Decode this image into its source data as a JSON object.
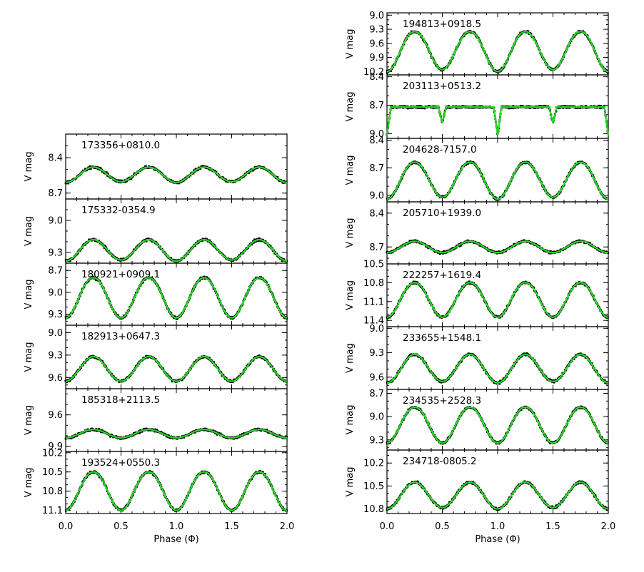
{
  "chart_data": {
    "type": "scatter",
    "xlabel": "Phase (Φ)",
    "xlim": [
      0.0,
      2.0
    ],
    "x_ticks": [
      "0.0",
      "0.5",
      "1.0",
      "1.5",
      "2.0"
    ],
    "ylabel": "V mag",
    "fit_color": "#22dd22",
    "point_color": "#000000",
    "panels": [
      {
        "column": "left",
        "id": "173356+0810.0",
        "ylim": [
          8.2,
          8.75
        ],
        "yticks": [
          "8.4",
          "8.7"
        ],
        "yticks_v": [
          8.4,
          8.7
        ],
        "max_mag": 8.48,
        "amp": 0.13,
        "kind": "ellip",
        "depth_ratio": 0.95
      },
      {
        "column": "left",
        "id": "175332-0354.9",
        "ylim": [
          8.8,
          9.4
        ],
        "yticks": [
          "9.0",
          "9.3"
        ],
        "yticks_v": [
          9.0,
          9.3
        ],
        "max_mag": 9.18,
        "amp": 0.2,
        "kind": "ellip",
        "depth_ratio": 0.95
      },
      {
        "column": "left",
        "id": "180921+0909.1",
        "ylim": [
          8.6,
          9.45
        ],
        "yticks": [
          "8.7",
          "9.0",
          "9.3"
        ],
        "yticks_v": [
          8.7,
          9.0,
          9.3
        ],
        "max_mag": 8.8,
        "amp": 0.55,
        "kind": "wuma",
        "depth_ratio": 1.0
      },
      {
        "column": "left",
        "id": "182913+0647.3",
        "ylim": [
          8.9,
          9.75
        ],
        "yticks": [
          "9.0",
          "9.3",
          "9.6"
        ],
        "yticks_v": [
          9.0,
          9.3,
          9.6
        ],
        "max_mag": 9.32,
        "amp": 0.33,
        "kind": "ellip",
        "depth_ratio": 1.0
      },
      {
        "column": "left",
        "id": "185318+2113.5",
        "ylim": [
          9.35,
          9.95
        ],
        "yticks": [
          "9.6",
          "9.9"
        ],
        "yticks_v": [
          9.6,
          9.9
        ],
        "max_mag": 9.74,
        "amp": 0.08,
        "kind": "ellip",
        "depth_ratio": 1.0
      },
      {
        "column": "left",
        "id": "193524+0550.3",
        "ylim": [
          10.18,
          11.15
        ],
        "yticks": [
          "10.2",
          "10.5",
          "10.8",
          "11.1"
        ],
        "yticks_v": [
          10.2,
          10.5,
          10.8,
          11.1
        ],
        "max_mag": 10.5,
        "amp": 0.6,
        "kind": "wuma",
        "depth_ratio": 1.0
      },
      {
        "column": "right",
        "id": "194813+0918.5",
        "ylim": [
          8.95,
          10.27
        ],
        "yticks": [
          "9.0",
          "9.3",
          "9.6",
          "9.9",
          "10.2"
        ],
        "yticks_v": [
          9.0,
          9.3,
          9.6,
          9.9,
          10.2
        ],
        "max_mag": 9.35,
        "amp": 0.85,
        "kind": "wuma",
        "depth_ratio": 0.95
      },
      {
        "column": "right",
        "id": "203113+0513.2",
        "ylim": [
          8.38,
          9.05
        ],
        "yticks": [
          "8.4",
          "8.7",
          "9.0"
        ],
        "yticks_v": [
          8.4,
          8.7,
          9.0
        ],
        "max_mag": 8.72,
        "amp": 0.3,
        "kind": "algol",
        "depth_ratio": 0.55
      },
      {
        "column": "right",
        "id": "204628-7157.0",
        "ylim": [
          8.38,
          9.07
        ],
        "yticks": [
          "8.4",
          "8.7",
          "9.0"
        ],
        "yticks_v": [
          8.4,
          8.7,
          9.0
        ],
        "max_mag": 8.64,
        "amp": 0.4,
        "kind": "wuma",
        "depth_ratio": 0.95
      },
      {
        "column": "right",
        "id": "205710+1939.0",
        "ylim": [
          8.3,
          8.85
        ],
        "yticks": [
          "8.4",
          "8.7"
        ],
        "yticks_v": [
          8.4,
          8.7
        ],
        "max_mag": 8.65,
        "amp": 0.1,
        "kind": "ellip",
        "depth_ratio": 1.0
      },
      {
        "column": "right",
        "id": "222257+1619.4",
        "ylim": [
          10.5,
          11.5
        ],
        "yticks": [
          "10.5",
          "10.8",
          "11.1",
          "11.4"
        ],
        "yticks_v": [
          10.5,
          10.8,
          11.1,
          11.4
        ],
        "max_mag": 10.8,
        "amp": 0.55,
        "kind": "wuma",
        "depth_ratio": 1.0
      },
      {
        "column": "right",
        "id": "233655+1548.1",
        "ylim": [
          8.98,
          9.75
        ],
        "yticks": [
          "9.0",
          "9.3",
          "9.6"
        ],
        "yticks_v": [
          9.0,
          9.3,
          9.6
        ],
        "max_mag": 9.32,
        "amp": 0.35,
        "kind": "ellip",
        "depth_ratio": 0.95
      },
      {
        "column": "right",
        "id": "234535+2528.3",
        "ylim": [
          8.65,
          9.43
        ],
        "yticks": [
          "8.7",
          "9.0",
          "9.3"
        ],
        "yticks_v": [
          8.7,
          9.0,
          9.3
        ],
        "max_mag": 8.88,
        "amp": 0.46,
        "kind": "wuma",
        "depth_ratio": 1.0
      },
      {
        "column": "right",
        "id": "234718-0805.2",
        "ylim": [
          10.03,
          10.86
        ],
        "yticks": [
          "10.2",
          "10.5",
          "10.8"
        ],
        "yticks_v": [
          10.2,
          10.5,
          10.8
        ],
        "max_mag": 10.45,
        "amp": 0.35,
        "kind": "ellip",
        "depth_ratio": 0.95
      }
    ]
  }
}
